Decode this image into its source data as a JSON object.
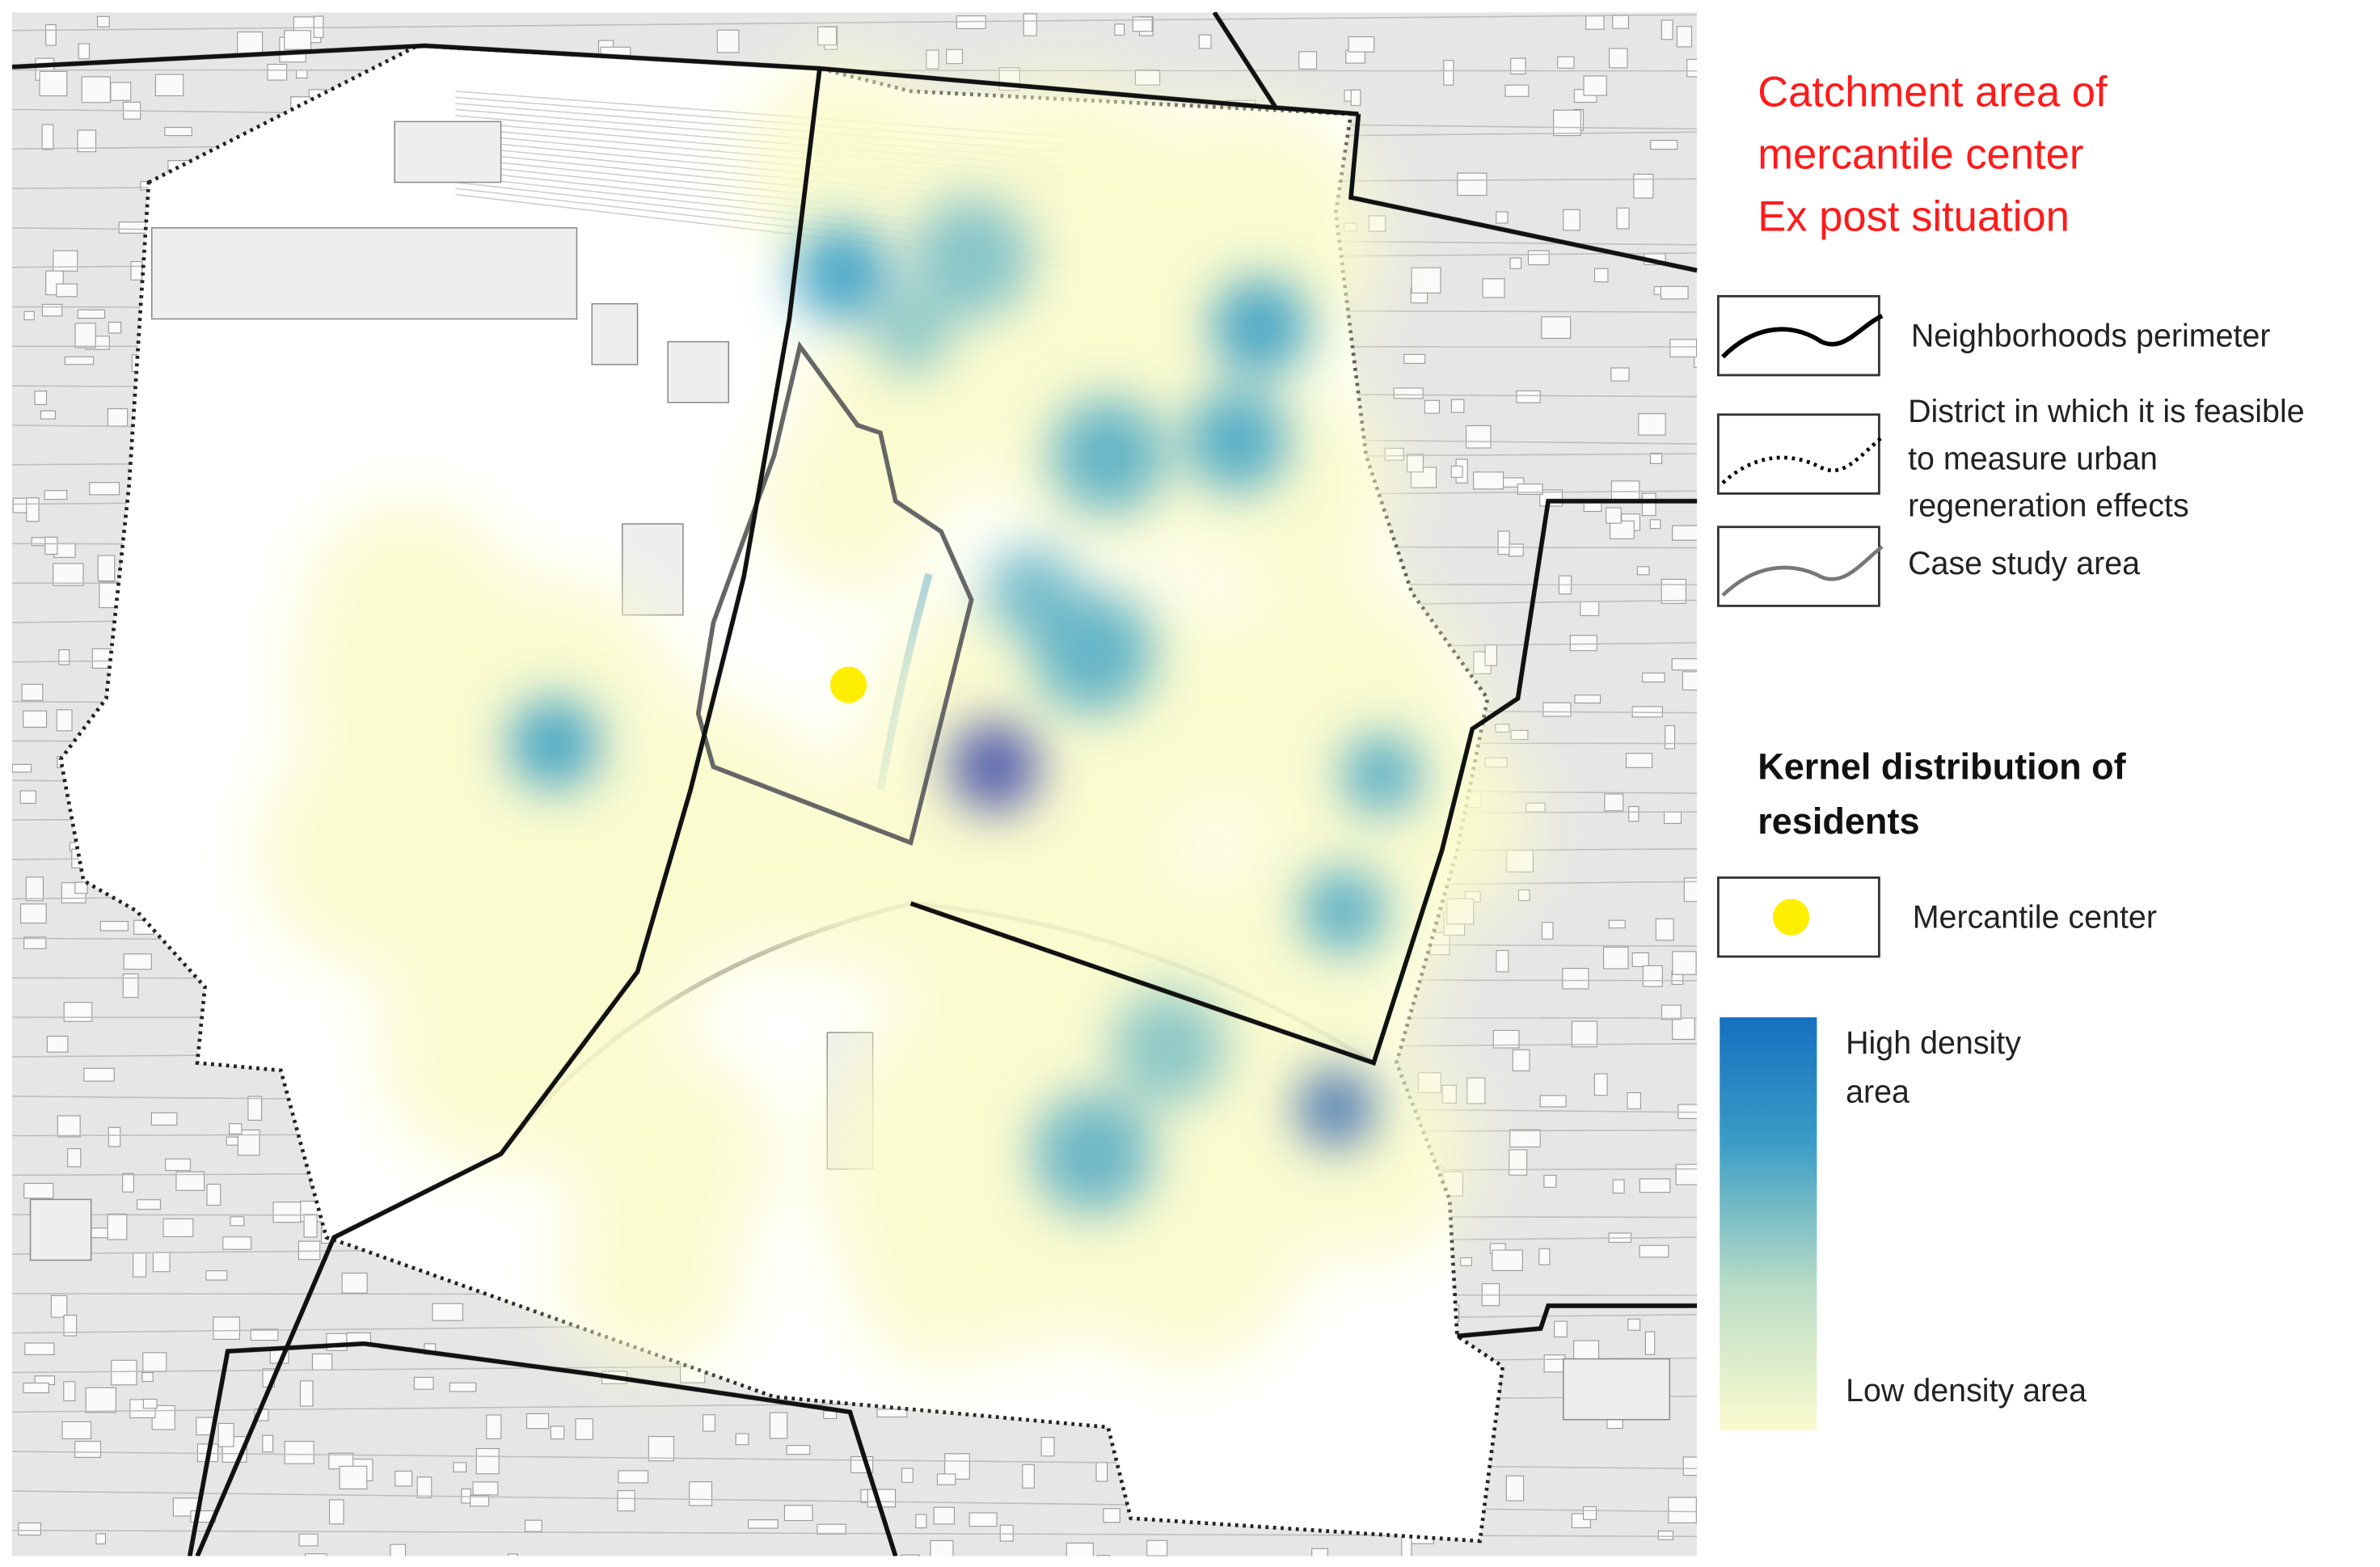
{
  "title": [
    "Catchment area of",
    "mercantile center",
    "Ex post situation"
  ],
  "legend": {
    "items": [
      {
        "label": [
          "Neighborhoods perimeter"
        ]
      },
      {
        "label": [
          "District in which it is feasible",
          "to measure urban",
          "regeneration effects"
        ]
      },
      {
        "label": [
          "Case study area"
        ]
      }
    ]
  },
  "kernel": {
    "title": [
      "Kernel distribution of",
      "residents"
    ],
    "marker_label": "Mercantile center",
    "high_label": [
      "High density",
      "area"
    ],
    "low_label": "Low density area"
  }
}
